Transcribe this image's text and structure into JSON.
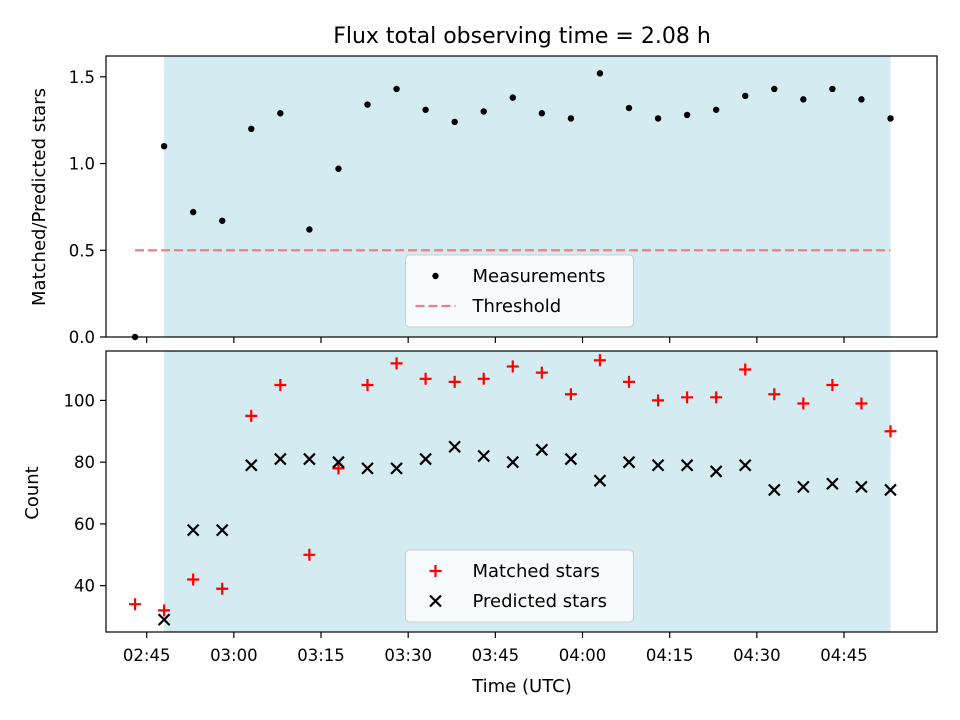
{
  "chart_data": [
    {
      "type": "scatter",
      "title": "Flux total observing time = 2.08 h",
      "xlabel": "",
      "ylabel": "Matched/Predicted stars",
      "xlim": [
        "02:38",
        "05:01"
      ],
      "ylim": [
        0,
        1.62
      ],
      "yticks": [
        0.0,
        0.5,
        1.0,
        1.5
      ],
      "ytick_labels": [
        "0.0",
        "0.5",
        "1.0",
        "1.5"
      ],
      "shaded_region": {
        "from": "02:48",
        "to": "04:53",
        "color": "#add8e6"
      },
      "legend_position": "lower center",
      "series": [
        {
          "name": "Measurements",
          "marker": "dot",
          "color": "#000000",
          "x": [
            "02:43",
            "02:48",
            "02:53",
            "02:58",
            "03:03",
            "03:08",
            "03:13",
            "03:18",
            "03:23",
            "03:28",
            "03:33",
            "03:38",
            "03:43",
            "03:48",
            "03:53",
            "03:58",
            "04:03",
            "04:08",
            "04:13",
            "04:18",
            "04:23",
            "04:28",
            "04:33",
            "04:38",
            "04:43",
            "04:48",
            "04:53"
          ],
          "y": [
            0.0,
            1.1,
            0.72,
            0.67,
            1.2,
            1.29,
            0.62,
            0.97,
            1.34,
            1.43,
            1.31,
            1.24,
            1.3,
            1.38,
            1.29,
            1.26,
            1.52,
            1.32,
            1.26,
            1.28,
            1.31,
            1.39,
            1.43,
            1.37,
            1.43,
            1.37,
            1.26
          ]
        },
        {
          "name": "Threshold",
          "style": "dashed",
          "color": "#f08080",
          "x": [
            "02:43",
            "04:53"
          ],
          "y": [
            0.5,
            0.5
          ]
        }
      ]
    },
    {
      "type": "scatter",
      "title": "",
      "xlabel": "Time (UTC)",
      "ylabel": "Count",
      "xlim": [
        "02:38",
        "05:01"
      ],
      "ylim": [
        25,
        116
      ],
      "yticks": [
        40,
        60,
        80,
        100
      ],
      "ytick_labels": [
        "40",
        "60",
        "80",
        "100"
      ],
      "xticks": [
        "02:45",
        "03:00",
        "03:15",
        "03:30",
        "03:45",
        "04:00",
        "04:15",
        "04:30",
        "04:45"
      ],
      "shaded_region": {
        "from": "02:48",
        "to": "04:53",
        "color": "#add8e6"
      },
      "legend_position": "lower center",
      "series": [
        {
          "name": "Matched stars",
          "marker": "plus",
          "color": "#ff0000",
          "x": [
            "02:43",
            "02:48",
            "02:53",
            "02:58",
            "03:03",
            "03:08",
            "03:13",
            "03:18",
            "03:23",
            "03:28",
            "03:33",
            "03:38",
            "03:43",
            "03:48",
            "03:53",
            "03:58",
            "04:03",
            "04:08",
            "04:13",
            "04:18",
            "04:23",
            "04:28",
            "04:33",
            "04:38",
            "04:43",
            "04:48",
            "04:53"
          ],
          "y": [
            34,
            32,
            42,
            39,
            95,
            105,
            50,
            78,
            105,
            112,
            107,
            106,
            107,
            111,
            109,
            102,
            113,
            106,
            100,
            101,
            101,
            110,
            102,
            99,
            105,
            99,
            90
          ]
        },
        {
          "name": "Predicted stars",
          "marker": "x",
          "color": "#000000",
          "x": [
            "02:48",
            "02:53",
            "02:58",
            "03:03",
            "03:08",
            "03:13",
            "03:18",
            "03:23",
            "03:28",
            "03:33",
            "03:38",
            "03:43",
            "03:48",
            "03:53",
            "03:58",
            "04:03",
            "04:08",
            "04:13",
            "04:18",
            "04:23",
            "04:28",
            "04:33",
            "04:38",
            "04:43",
            "04:48",
            "04:53"
          ],
          "y": [
            29,
            58,
            58,
            79,
            81,
            81,
            80,
            78,
            78,
            81,
            85,
            82,
            80,
            84,
            81,
            74,
            80,
            79,
            79,
            77,
            79,
            71,
            72,
            73,
            72,
            71
          ]
        }
      ]
    }
  ]
}
